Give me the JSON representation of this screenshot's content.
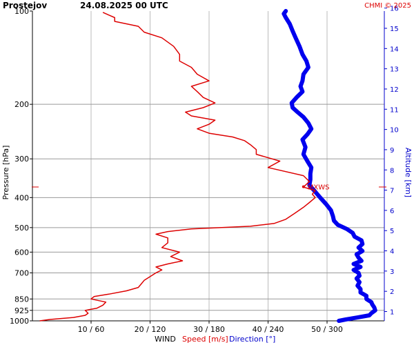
{
  "header": {
    "station": "Prostejov",
    "datetime": "24.08.2025 00 UTC",
    "credit": "CHMI © 2025"
  },
  "chart_data": {
    "type": "line",
    "ylabel_left": "Pressure [hPa]",
    "ylabel_right": "Altitude [km]",
    "xlabel_parts": {
      "wind": "WIND",
      "speed": "Speed [m/s]",
      "direction": "Direction [°]"
    },
    "pressure_ticks": [
      100,
      200,
      300,
      400,
      500,
      600,
      700,
      850,
      925,
      1000
    ],
    "altitude_ticks": [
      1,
      2,
      3,
      4,
      5,
      6,
      7,
      8,
      9,
      10,
      11,
      12,
      13,
      14,
      15,
      16
    ],
    "x_ticks": [
      {
        "speed": 10,
        "label": "10 / 60"
      },
      {
        "speed": 20,
        "label": "20 / 120"
      },
      {
        "speed": 30,
        "label": "30 / 180"
      },
      {
        "speed": 40,
        "label": "40 / 240"
      },
      {
        "speed": 50,
        "label": "50 / 300"
      }
    ],
    "x_range_speed": [
      0,
      60
    ],
    "y_range_pressure": [
      100,
      1000
    ],
    "y_scale": "log",
    "grid": true,
    "annotation": {
      "label": "MXWS",
      "pressure": 369,
      "speed": 46
    },
    "series": [
      {
        "name": "Speed [m/s]",
        "color": "#dd0000",
        "points": [
          [
            1000,
            1.3
          ],
          [
            990,
            3
          ],
          [
            975,
            7
          ],
          [
            960,
            9
          ],
          [
            945,
            9.5
          ],
          [
            925,
            9
          ],
          [
            910,
            11
          ],
          [
            890,
            12
          ],
          [
            870,
            12.5
          ],
          [
            850,
            10
          ],
          [
            835,
            10.5
          ],
          [
            820,
            13
          ],
          [
            800,
            16
          ],
          [
            780,
            18
          ],
          [
            760,
            18.5
          ],
          [
            740,
            19
          ],
          [
            720,
            20
          ],
          [
            700,
            21
          ],
          [
            685,
            22
          ],
          [
            670,
            21
          ],
          [
            655,
            23
          ],
          [
            640,
            25.5
          ],
          [
            620,
            23.5
          ],
          [
            600,
            25
          ],
          [
            580,
            22
          ],
          [
            560,
            23
          ],
          [
            540,
            23
          ],
          [
            525,
            21
          ],
          [
            515,
            23
          ],
          [
            505,
            27
          ],
          [
            495,
            37
          ],
          [
            485,
            41
          ],
          [
            470,
            43
          ],
          [
            450,
            44.5
          ],
          [
            430,
            46
          ],
          [
            415,
            47
          ],
          [
            400,
            48
          ],
          [
            390,
            47.5
          ],
          [
            380,
            48
          ],
          [
            370,
            46
          ],
          [
            355,
            47
          ],
          [
            340,
            46
          ],
          [
            320,
            40
          ],
          [
            305,
            42
          ],
          [
            290,
            38
          ],
          [
            280,
            38
          ],
          [
            270,
            37
          ],
          [
            262,
            36
          ],
          [
            255,
            34
          ],
          [
            248,
            30
          ],
          [
            240,
            28
          ],
          [
            232,
            30
          ],
          [
            225,
            31
          ],
          [
            218,
            27
          ],
          [
            212,
            26
          ],
          [
            205,
            29
          ],
          [
            198,
            31
          ],
          [
            190,
            29
          ],
          [
            182,
            28
          ],
          [
            175,
            27
          ],
          [
            168,
            30
          ],
          [
            160,
            28
          ],
          [
            152,
            27
          ],
          [
            145,
            25
          ],
          [
            138,
            25
          ],
          [
            130,
            24
          ],
          [
            122,
            22
          ],
          [
            117,
            19
          ],
          [
            112,
            18
          ],
          [
            108,
            14
          ],
          [
            105,
            14
          ],
          [
            103,
            13
          ],
          [
            101,
            12
          ]
        ]
      },
      {
        "name": "Direction [°]",
        "color": "#0000ee",
        "points": [
          [
            1000,
            312
          ],
          [
            990,
            319
          ],
          [
            975,
            331
          ],
          [
            960,
            343
          ],
          [
            945,
            345
          ],
          [
            925,
            349
          ],
          [
            905,
            348
          ],
          [
            885,
            346
          ],
          [
            870,
            345
          ],
          [
            850,
            340
          ],
          [
            830,
            340
          ],
          [
            810,
            334
          ],
          [
            790,
            334
          ],
          [
            770,
            331
          ],
          [
            750,
            333
          ],
          [
            730,
            330
          ],
          [
            715,
            333
          ],
          [
            700,
            332
          ],
          [
            685,
            327
          ],
          [
            670,
            334
          ],
          [
            655,
            327
          ],
          [
            640,
            335
          ],
          [
            625,
            332
          ],
          [
            610,
            330
          ],
          [
            595,
            336
          ],
          [
            580,
            332
          ],
          [
            565,
            336
          ],
          [
            550,
            335
          ],
          [
            535,
            328
          ],
          [
            520,
            326
          ],
          [
            505,
            320
          ],
          [
            490,
            311
          ],
          [
            475,
            307
          ],
          [
            460,
            306
          ],
          [
            440,
            304
          ],
          [
            420,
            299
          ],
          [
            400,
            293
          ],
          [
            380,
            287
          ],
          [
            365,
            282
          ],
          [
            350,
            283
          ],
          [
            335,
            283
          ],
          [
            320,
            284
          ],
          [
            305,
            280
          ],
          [
            290,
            276
          ],
          [
            275,
            278
          ],
          [
            260,
            275
          ],
          [
            250,
            280
          ],
          [
            240,
            284
          ],
          [
            230,
            281
          ],
          [
            220,
            276
          ],
          [
            212,
            270
          ],
          [
            205,
            265
          ],
          [
            198,
            264
          ],
          [
            190,
            269
          ],
          [
            182,
            275
          ],
          [
            175,
            273
          ],
          [
            168,
            275
          ],
          [
            160,
            276
          ],
          [
            152,
            281
          ],
          [
            145,
            279
          ],
          [
            138,
            275
          ],
          [
            130,
            272
          ],
          [
            122,
            268
          ],
          [
            116,
            265
          ],
          [
            110,
            262
          ],
          [
            105,
            258
          ],
          [
            102,
            256
          ],
          [
            100,
            258
          ]
        ]
      }
    ]
  }
}
